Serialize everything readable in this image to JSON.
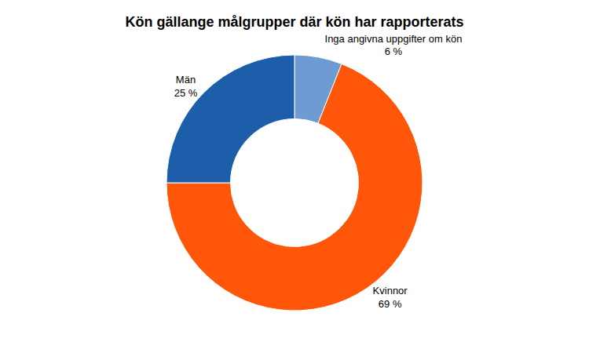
{
  "chart_data": {
    "type": "pie",
    "title": "Kön gällange målgrupper där kön har rapporterats",
    "categories": [
      "Inga angivna uppgifter om kön",
      "Kvinnor",
      "Män"
    ],
    "values": [
      6,
      69,
      25
    ],
    "value_labels": [
      "6 %",
      "69 %",
      "25 %"
    ],
    "colors": [
      "#6d9bd2",
      "#ff560a",
      "#1c5ea9"
    ],
    "data_labels": true
  }
}
